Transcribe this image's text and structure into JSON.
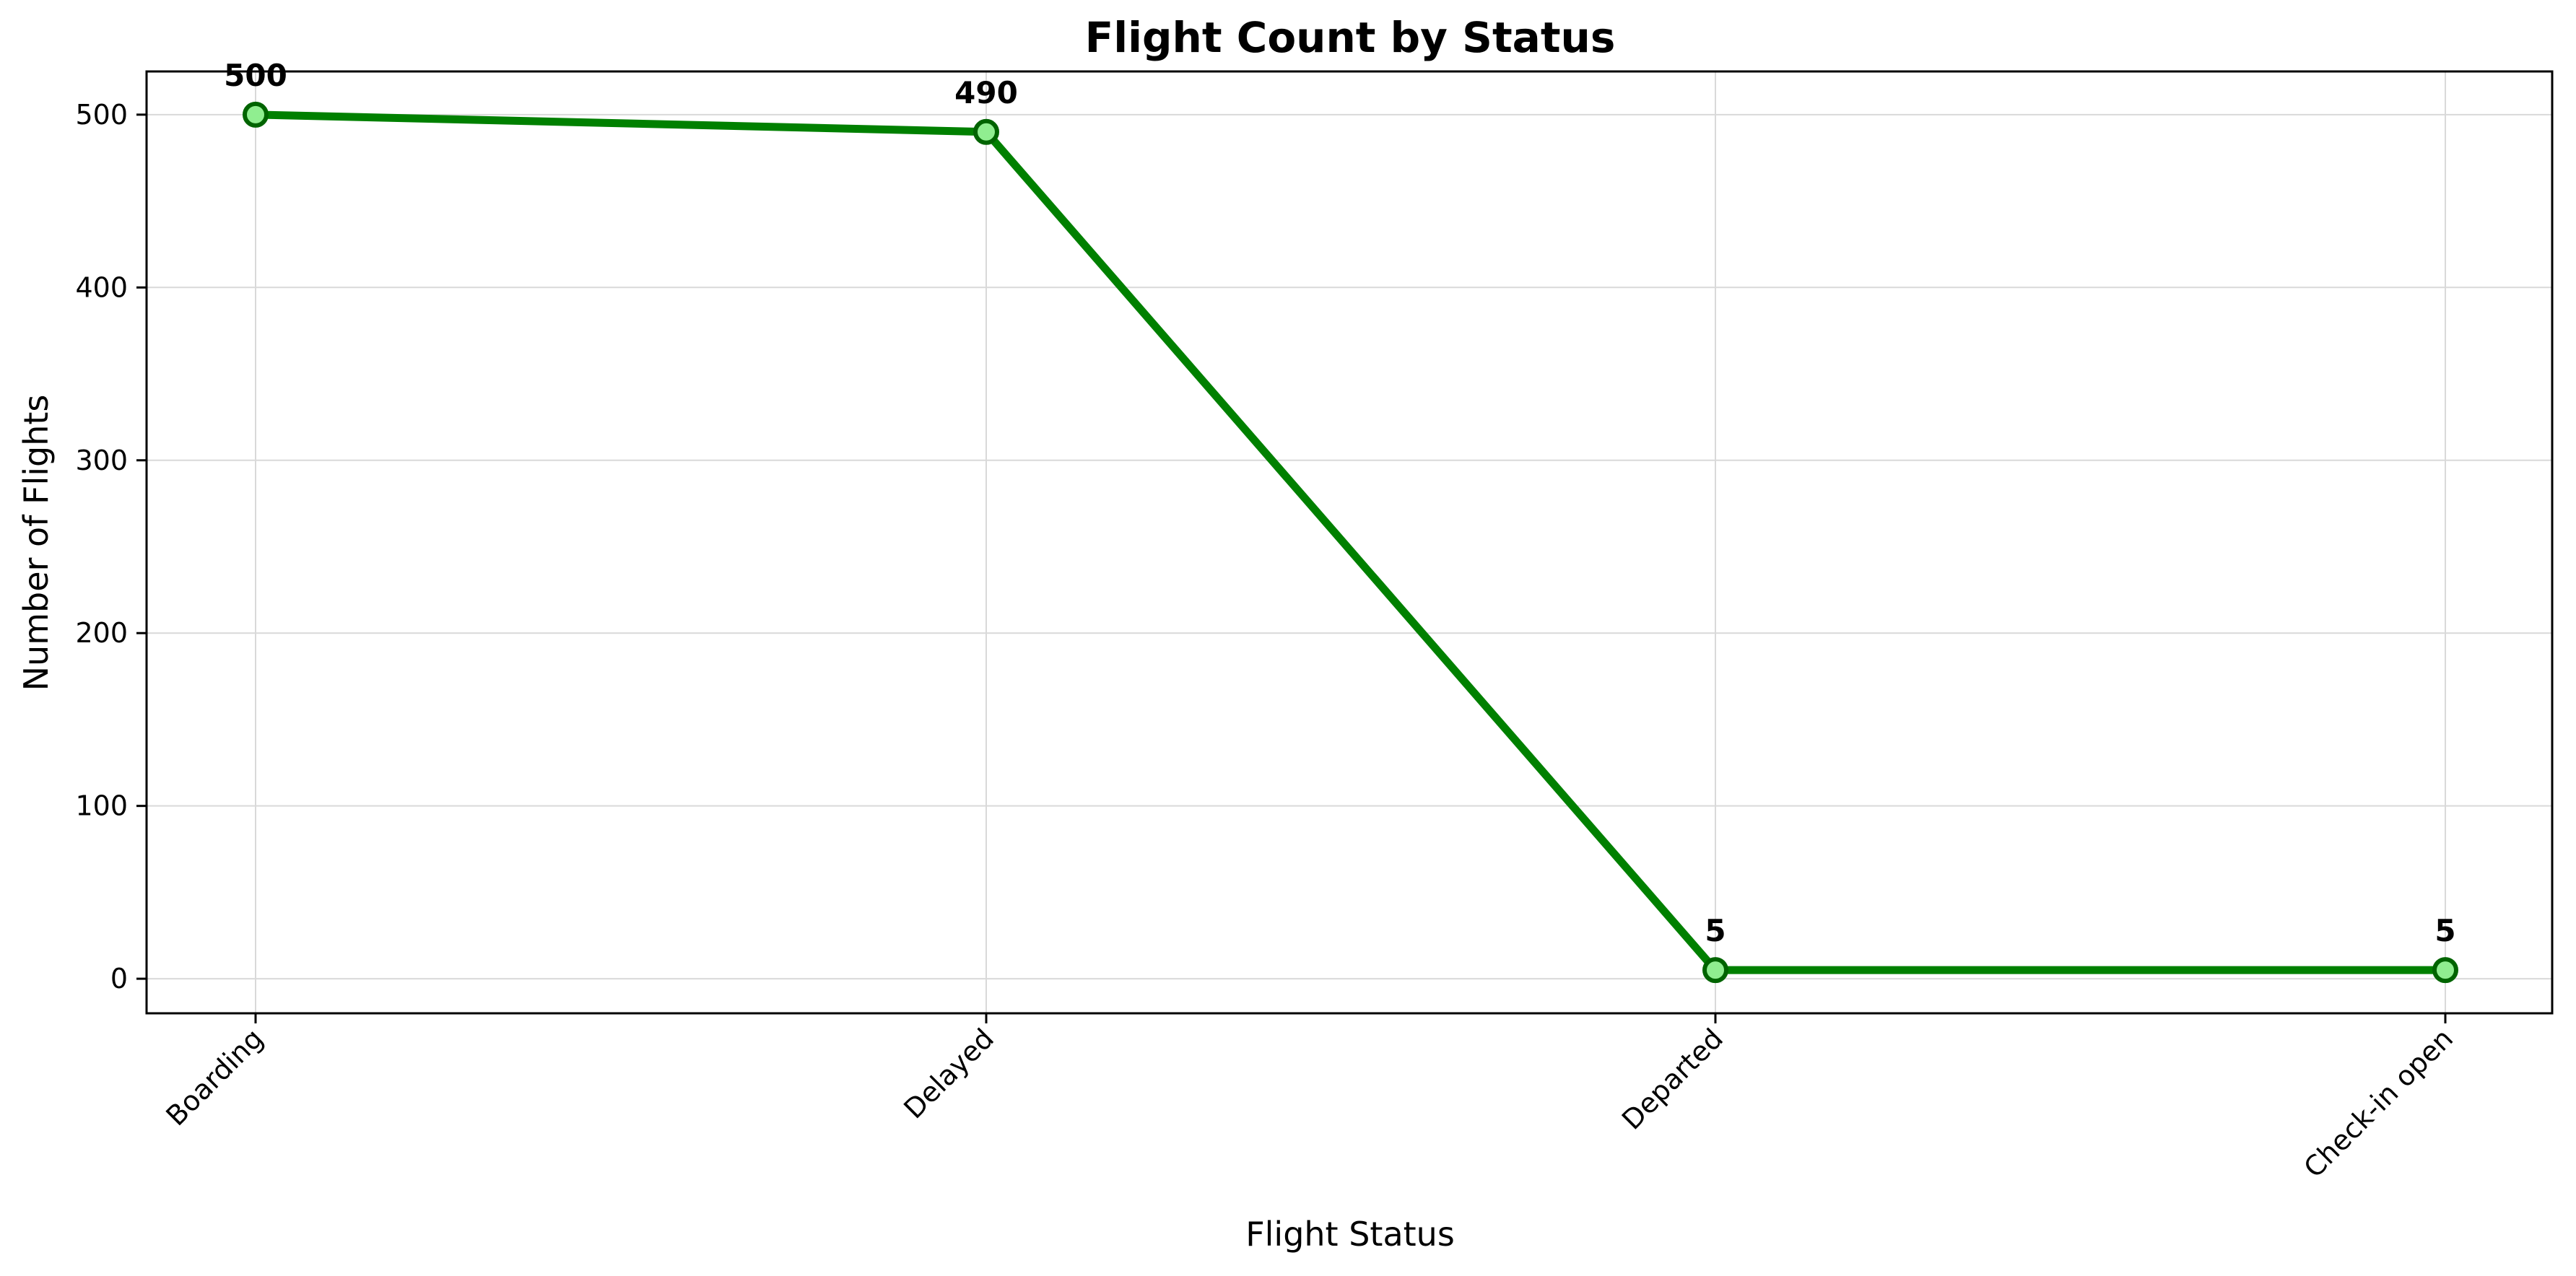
{
  "chart_data": {
    "type": "line",
    "title": "Flight Count by Status",
    "xlabel": "Flight Status",
    "ylabel": "Number of Flights",
    "categories": [
      "Boarding",
      "Delayed",
      "Departed",
      "Check-in open"
    ],
    "series": [
      {
        "values": [
          500,
          490,
          5,
          5
        ]
      }
    ],
    "data_labels": [
      "500",
      "490",
      "5",
      "5"
    ],
    "yticks": [
      0,
      100,
      200,
      300,
      400,
      500
    ],
    "ylim": [
      -20,
      525
    ],
    "grid": true,
    "legend": "none",
    "line_color": "#008000",
    "marker_fill": "#90EE90",
    "marker_edge": "#006400"
  }
}
